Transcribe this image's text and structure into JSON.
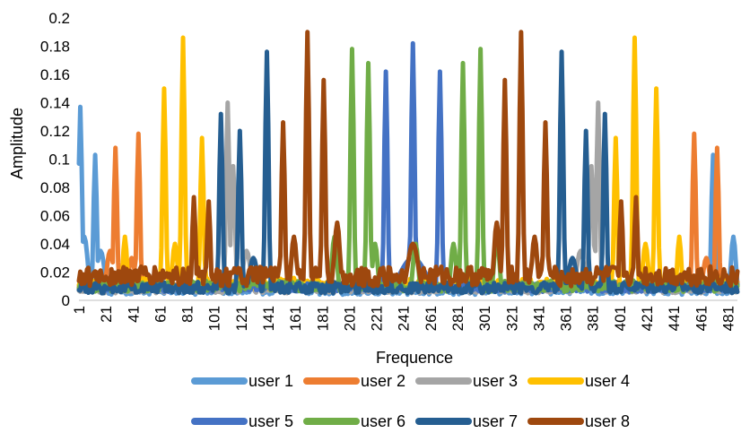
{
  "chart_data": {
    "type": "line",
    "title": "",
    "xlabel": "Frequence",
    "ylabel": "Amplitude",
    "ylim": [
      0,
      0.2
    ],
    "xlim": [
      1,
      488
    ],
    "y_ticks": [
      "0",
      "0.02",
      "0.04",
      "0.06",
      "0.08",
      "0.1",
      "0.12",
      "0.14",
      "0.16",
      "0.18",
      "0.2"
    ],
    "x_ticks": [
      "1",
      "21",
      "41",
      "61",
      "81",
      "101",
      "121",
      "141",
      "161",
      "181",
      "201",
      "221",
      "241",
      "261",
      "281",
      "301",
      "321",
      "341",
      "361",
      "381",
      "401",
      "421",
      "441",
      "461",
      "481"
    ],
    "grid": false,
    "legend_position": "bottom",
    "series": [
      {
        "name": "user 1",
        "color": "#5b9bd5",
        "line_width": 5,
        "base": 0.004,
        "noise": 0.006,
        "peaks": [
          [
            2,
            0.137,
            1.2
          ],
          [
            5,
            0.045,
            2.5
          ],
          [
            13,
            0.103,
            1.2
          ],
          [
            17,
            0.035,
            3
          ],
          [
            470,
            0.103,
            1.2
          ],
          [
            485,
            0.045,
            1.8
          ],
          [
            150,
            0.012,
            4
          ]
        ]
      },
      {
        "name": "user 2",
        "color": "#ed7d31",
        "line_width": 5,
        "base": 0.007,
        "noise": 0.006,
        "peaks": [
          [
            28,
            0.108,
            1.2
          ],
          [
            45,
            0.118,
            1.2
          ],
          [
            24,
            0.035,
            2.5
          ],
          [
            456,
            0.118,
            1.2
          ],
          [
            473,
            0.108,
            1.2
          ],
          [
            40,
            0.03,
            2.5
          ],
          [
            465,
            0.03,
            2.5
          ]
        ]
      },
      {
        "name": "user 3",
        "color": "#a5a5a5",
        "line_width": 5,
        "base": 0.005,
        "noise": 0.005,
        "peaks": [
          [
            111,
            0.14,
            1.2
          ],
          [
            115,
            0.095,
            1.5
          ],
          [
            385,
            0.14,
            1.2
          ],
          [
            380,
            0.095,
            1.5
          ],
          [
            125,
            0.035,
            3
          ],
          [
            372,
            0.035,
            3
          ]
        ]
      },
      {
        "name": "user 4",
        "color": "#ffc000",
        "line_width": 5,
        "base": 0.008,
        "noise": 0.008,
        "peaks": [
          [
            35,
            0.045,
            1.5
          ],
          [
            64,
            0.15,
            1.2
          ],
          [
            78,
            0.186,
            1.2
          ],
          [
            92,
            0.115,
            1.2
          ],
          [
            412,
            0.186,
            1.2
          ],
          [
            428,
            0.15,
            1.2
          ],
          [
            398,
            0.115,
            1.2
          ],
          [
            445,
            0.045,
            1.5
          ],
          [
            72,
            0.04,
            2
          ],
          [
            420,
            0.04,
            2
          ]
        ]
      },
      {
        "name": "user 5",
        "color": "#4472c4",
        "line_width": 5,
        "base": 0.006,
        "noise": 0.006,
        "peaks": [
          [
            248,
            0.182,
            1.2
          ],
          [
            228,
            0.162,
            1.2
          ],
          [
            268,
            0.162,
            1.2
          ],
          [
            248,
            0.03,
            10
          ]
        ]
      },
      {
        "name": "user 6",
        "color": "#70ad47",
        "line_width": 5,
        "base": 0.006,
        "noise": 0.008,
        "peaks": [
          [
            203,
            0.178,
            1.2
          ],
          [
            215,
            0.168,
            1.2
          ],
          [
            285,
            0.168,
            1.2
          ],
          [
            298,
            0.178,
            1.2
          ],
          [
            190,
            0.045,
            2
          ],
          [
            310,
            0.045,
            2
          ],
          [
            220,
            0.04,
            2
          ],
          [
            278,
            0.04,
            2
          ],
          [
            250,
            0.04,
            2
          ]
        ]
      },
      {
        "name": "user 7",
        "color": "#255e91",
        "line_width": 5,
        "base": 0.005,
        "noise": 0.008,
        "peaks": [
          [
            106,
            0.132,
            1.2
          ],
          [
            120,
            0.12,
            1.2
          ],
          [
            140,
            0.176,
            1.2
          ],
          [
            358,
            0.176,
            1.2
          ],
          [
            376,
            0.12,
            1.2
          ],
          [
            390,
            0.132,
            1.2
          ],
          [
            130,
            0.03,
            3
          ],
          [
            366,
            0.03,
            3
          ]
        ]
      },
      {
        "name": "user 8",
        "color": "#9e480e",
        "line_width": 5,
        "base": 0.01,
        "noise": 0.014,
        "peaks": [
          [
            86,
            0.073,
            1.2
          ],
          [
            97,
            0.07,
            1.2
          ],
          [
            152,
            0.126,
            1.2
          ],
          [
            170,
            0.19,
            1.2
          ],
          [
            182,
            0.156,
            1.2
          ],
          [
            316,
            0.156,
            1.2
          ],
          [
            328,
            0.19,
            1.2
          ],
          [
            346,
            0.126,
            1.2
          ],
          [
            160,
            0.045,
            2
          ],
          [
            192,
            0.055,
            2
          ],
          [
            310,
            0.055,
            2
          ],
          [
            338,
            0.045,
            2
          ],
          [
            248,
            0.04,
            4
          ],
          [
            402,
            0.07,
            1.2
          ],
          [
            413,
            0.073,
            1.2
          ]
        ]
      }
    ]
  }
}
